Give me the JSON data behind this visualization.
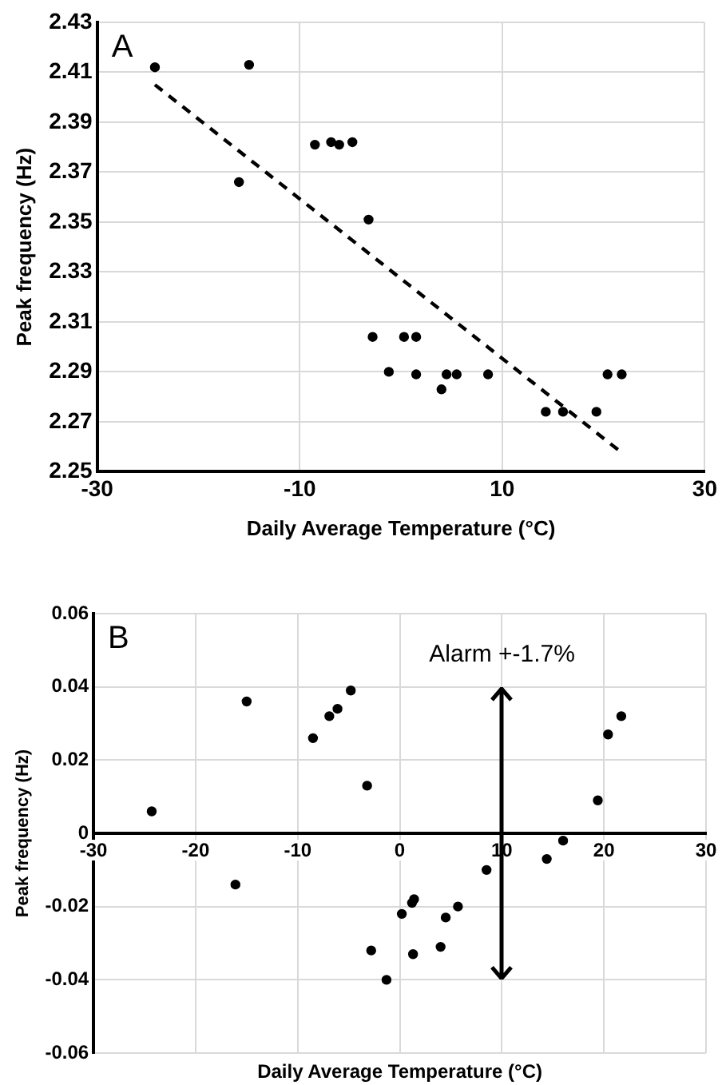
{
  "chart_data": [
    {
      "type": "scatter",
      "xlabel": "Daily Average Temperature (°C)",
      "ylabel": "Peak frequency (Hz)",
      "annotations": [
        "A"
      ],
      "grid": true,
      "legend": false,
      "xlim": [
        -30,
        30
      ],
      "xticks": [
        -30,
        -10,
        10,
        30
      ],
      "ylim": [
        2.25,
        2.43
      ],
      "yticks": [
        2.25,
        2.27,
        2.29,
        2.31,
        2.33,
        2.35,
        2.37,
        2.39,
        2.41,
        2.43
      ],
      "series": [
        {
          "type": "scatter",
          "marker": "circle",
          "color": "#000000",
          "x": [
            -24.3,
            -15.0,
            -16.0,
            -8.5,
            -6.9,
            -6.1,
            -4.8,
            -3.2,
            -2.8,
            -1.2,
            0.3,
            1.5,
            1.5,
            4.0,
            4.5,
            5.5,
            8.6,
            14.3,
            16.0,
            19.3,
            20.4,
            21.8
          ],
          "values": [
            2.412,
            2.413,
            2.366,
            2.381,
            2.382,
            2.381,
            2.382,
            2.351,
            2.304,
            2.29,
            2.304,
            2.304,
            2.289,
            2.283,
            2.289,
            2.289,
            2.289,
            2.274,
            2.274,
            2.274,
            2.289,
            2.289
          ]
        },
        {
          "type": "line",
          "marker": "none",
          "color": "#000000",
          "line_style": "dashed",
          "x": [
            -24.3,
            22.0
          ],
          "values": [
            2.405,
            2.257
          ]
        }
      ]
    },
    {
      "type": "scatter",
      "xlabel": "Daily Average Temperature (°C)",
      "ylabel": "Peak frequency (Hz)",
      "annotations": [
        "B",
        "Alarm +-1.7%"
      ],
      "marker": "circle",
      "grid": true,
      "legend": false,
      "xlim": [
        -30,
        30
      ],
      "xticks": [
        -30,
        -20,
        -10,
        0,
        10,
        20,
        30
      ],
      "ylim": [
        -0.06,
        0.06
      ],
      "yticks": [
        -0.06,
        -0.04,
        -0.02,
        0,
        0.02,
        0.04,
        0.06
      ],
      "series": [
        {
          "type": "scatter",
          "color": "#000000",
          "x": [
            -24.3,
            -15.0,
            -16.1,
            -8.5,
            -6.9,
            -6.1,
            -4.8,
            -3.2,
            -2.8,
            -1.3,
            0.2,
            1.2,
            1.4,
            1.3,
            4.0,
            4.5,
            5.7,
            8.5,
            14.4,
            16.0,
            19.4,
            20.4,
            21.7
          ],
          "values": [
            0.006,
            0.036,
            -0.014,
            0.026,
            0.032,
            0.034,
            0.039,
            0.013,
            -0.032,
            -0.04,
            -0.022,
            -0.019,
            -0.018,
            -0.033,
            -0.031,
            -0.023,
            -0.02,
            -0.01,
            -0.007,
            -0.002,
            0.009,
            0.027,
            0.032
          ]
        }
      ]
    }
  ]
}
